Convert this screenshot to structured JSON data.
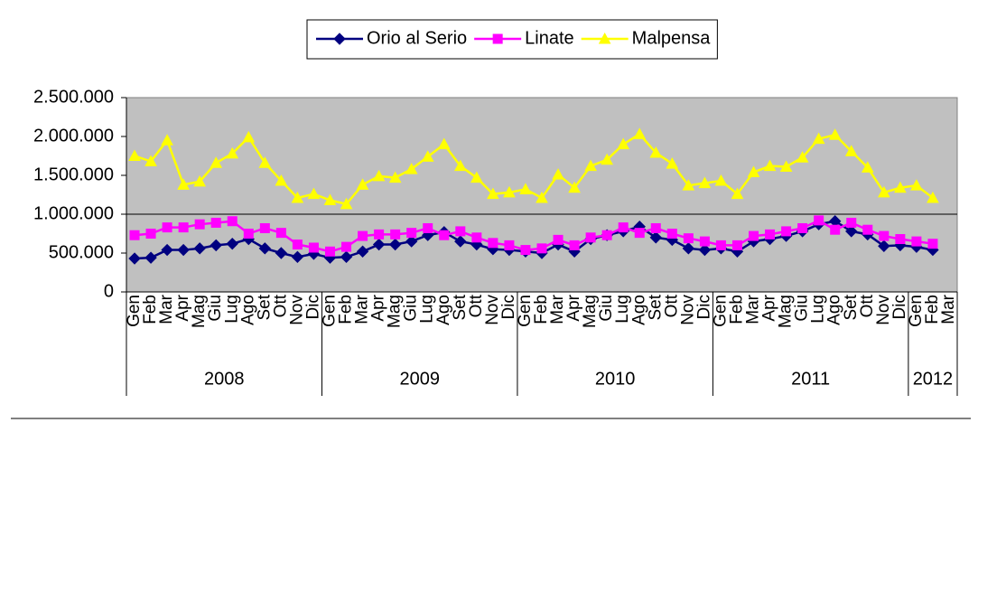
{
  "chart_data": {
    "type": "line",
    "groups": [
      {
        "label": "2008",
        "categories": [
          "Gen",
          "Feb",
          "Mar",
          "Apr",
          "Mag",
          "Giu",
          "Lug",
          "Ago",
          "Set",
          "Ott",
          "Nov",
          "Dic"
        ]
      },
      {
        "label": "2009",
        "categories": [
          "Gen",
          "Feb",
          "Mar",
          "Apr",
          "Mag",
          "Giu",
          "Lug",
          "Ago",
          "Set",
          "Ott",
          "Nov",
          "Dic"
        ]
      },
      {
        "label": "2010",
        "categories": [
          "Gen",
          "Feb",
          "Mar",
          "Apr",
          "Mag",
          "Giu",
          "Lug",
          "Ago",
          "Set",
          "Ott",
          "Nov",
          "Dic"
        ]
      },
      {
        "label": "2011",
        "categories": [
          "Gen",
          "Feb",
          "Mar",
          "Apr",
          "Mag",
          "Giu",
          "Lug",
          "Ago",
          "Set",
          "Ott",
          "Nov",
          "Dic"
        ]
      },
      {
        "label": "2012",
        "categories": [
          "Gen",
          "Feb",
          "Mar"
        ]
      }
    ],
    "series": [
      {
        "name": "Orio al Serio",
        "color": "#000080",
        "marker": "diamond",
        "values": [
          430000,
          440000,
          540000,
          540000,
          560000,
          600000,
          620000,
          680000,
          560000,
          500000,
          450000,
          490000,
          440000,
          450000,
          520000,
          610000,
          610000,
          650000,
          730000,
          770000,
          650000,
          610000,
          550000,
          540000,
          520000,
          500000,
          610000,
          520000,
          680000,
          730000,
          780000,
          840000,
          700000,
          670000,
          560000,
          540000,
          560000,
          520000,
          650000,
          680000,
          720000,
          780000,
          870000,
          910000,
          780000,
          740000,
          590000,
          600000,
          580000,
          540000,
          null
        ]
      },
      {
        "name": "Linate",
        "color": "#ff00ff",
        "marker": "square",
        "values": [
          730000,
          750000,
          830000,
          830000,
          870000,
          890000,
          910000,
          750000,
          820000,
          760000,
          610000,
          570000,
          520000,
          580000,
          720000,
          740000,
          740000,
          760000,
          820000,
          730000,
          780000,
          700000,
          630000,
          600000,
          540000,
          560000,
          670000,
          600000,
          700000,
          730000,
          830000,
          760000,
          820000,
          750000,
          690000,
          650000,
          600000,
          600000,
          720000,
          740000,
          780000,
          820000,
          920000,
          800000,
          890000,
          800000,
          720000,
          680000,
          650000,
          620000,
          null
        ]
      },
      {
        "name": "Malpensa",
        "color": "#ffff00",
        "marker": "triangle",
        "values": [
          1750000,
          1680000,
          1950000,
          1380000,
          1420000,
          1660000,
          1780000,
          1990000,
          1660000,
          1430000,
          1210000,
          1260000,
          1180000,
          1130000,
          1380000,
          1490000,
          1470000,
          1580000,
          1740000,
          1900000,
          1620000,
          1470000,
          1260000,
          1280000,
          1320000,
          1210000,
          1510000,
          1340000,
          1620000,
          1700000,
          1900000,
          2030000,
          1790000,
          1650000,
          1370000,
          1400000,
          1430000,
          1260000,
          1540000,
          1620000,
          1610000,
          1730000,
          1970000,
          2020000,
          1810000,
          1600000,
          1280000,
          1340000,
          1370000,
          1210000,
          null
        ]
      }
    ],
    "ylim": [
      0,
      2500000
    ],
    "yticks": [
      0,
      {
        "value": 500000,
        "label": "500.000"
      },
      {
        "value": 1000000,
        "label": "1.000.000"
      },
      {
        "value": 1500000,
        "label": "1.500.000"
      },
      {
        "value": 2000000,
        "label": "2.000.000"
      },
      {
        "value": 2500000,
        "label": "2.500.000"
      }
    ],
    "hline": 1000000,
    "plot_background": "#c0c0c0",
    "legend": "top"
  }
}
